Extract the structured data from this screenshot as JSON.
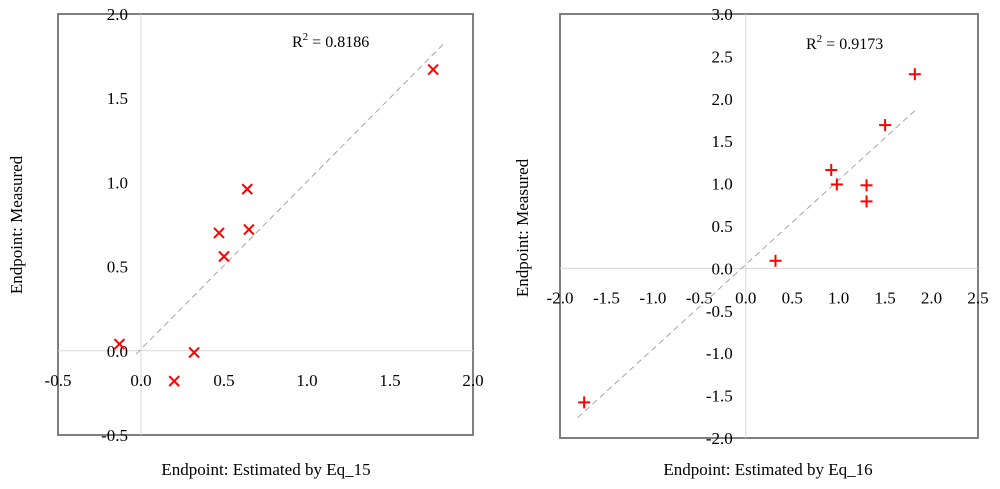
{
  "chart_data": [
    {
      "type": "scatter",
      "marker": "x",
      "marker_color": "#ff0000",
      "trendline_color": "#a6a6a6",
      "xlabel": "Endpoint: Estimated by Eq_15",
      "ylabel": "Endpoint: Measured",
      "xlim": [
        -0.5,
        2.0
      ],
      "ylim": [
        -0.5,
        2.0
      ],
      "x_ticks": [
        "-0.5",
        "0.0",
        "0.5",
        "1.0",
        "1.5",
        "2.0"
      ],
      "y_ticks": [
        "-0.5",
        "0.0",
        "0.5",
        "1.0",
        "1.5",
        "2.0"
      ],
      "r2_prefix": "R",
      "r2_sup": "2",
      "r2_value": " = 0.8186",
      "trendline": [
        [
          -0.03,
          -0.02
        ],
        [
          1.82,
          1.82
        ]
      ],
      "points": [
        {
          "x": -0.13,
          "y": 0.04
        },
        {
          "x": 0.2,
          "y": -0.18
        },
        {
          "x": 0.32,
          "y": -0.01
        },
        {
          "x": 0.47,
          "y": 0.7
        },
        {
          "x": 0.5,
          "y": 0.56
        },
        {
          "x": 0.64,
          "y": 0.96
        },
        {
          "x": 0.65,
          "y": 0.72
        },
        {
          "x": 1.76,
          "y": 1.67
        }
      ]
    },
    {
      "type": "scatter",
      "marker": "+",
      "marker_color": "#ff0000",
      "trendline_color": "#a6a6a6",
      "xlabel": "Endpoint: Estimated by Eq_16",
      "ylabel": "Endpoint: Measured",
      "xlim": [
        -2.0,
        2.5
      ],
      "ylim": [
        -2.0,
        3.0
      ],
      "x_ticks": [
        "-2.0",
        "-1.5",
        "-1.0",
        "-0.5",
        "0.0",
        "0.5",
        "1.0",
        "1.5",
        "2.0",
        "2.5"
      ],
      "y_ticks": [
        "-2.0",
        "-1.5",
        "-1.0",
        "-0.5",
        "0.0",
        "0.5",
        "1.0",
        "1.5",
        "2.0",
        "2.5",
        "3.0"
      ],
      "r2_prefix": "R",
      "r2_sup": "2",
      "r2_value": " = 0.9173",
      "trendline": [
        [
          -1.81,
          -1.76
        ],
        [
          1.84,
          1.88
        ]
      ],
      "points": [
        {
          "x": -1.74,
          "y": -1.58
        },
        {
          "x": 0.32,
          "y": 0.09
        },
        {
          "x": 0.92,
          "y": 1.16
        },
        {
          "x": 0.98,
          "y": 0.99
        },
        {
          "x": 1.3,
          "y": 0.98
        },
        {
          "x": 1.3,
          "y": 0.79
        },
        {
          "x": 1.5,
          "y": 1.69
        },
        {
          "x": 1.82,
          "y": 2.29
        }
      ]
    }
  ]
}
